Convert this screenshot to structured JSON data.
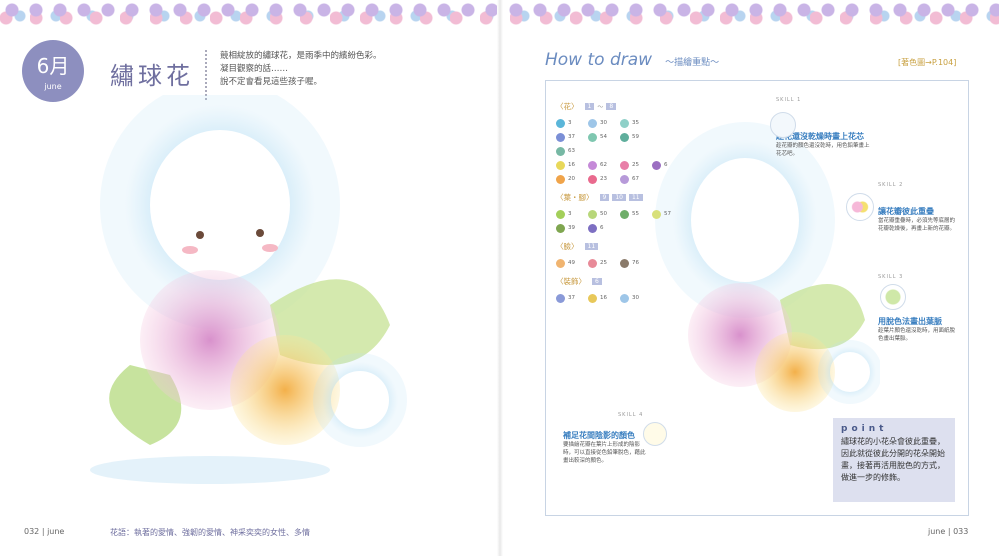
{
  "left_page": {
    "month": "6月",
    "month_en": "june",
    "title": "繡球花",
    "intro": [
      "競相綻放的繡球花，是雨季中的繽紛色彩。",
      "凝目觀察的話……",
      "說不定會看見這些孩子喔。"
    ],
    "page_number": "032",
    "running_head": "june",
    "flower_language": "花語：執著的愛情、強韌的愛情、神采奕奕的女性、多情"
  },
  "right_page": {
    "heading": "How to draw",
    "subheading": "～描繪重點～",
    "reference": "[著色圖→P.104]",
    "palette": [
      {
        "label": "〈花〉",
        "badges": [
          "1",
          "～",
          "8"
        ],
        "rows": [
          [
            {
              "no": "3",
              "color": "#5bb6d9"
            },
            {
              "no": "30",
              "color": "#9ec6e8"
            },
            {
              "no": "35",
              "color": "#8fd0c8"
            }
          ],
          [
            {
              "no": "37",
              "color": "#7b8fd6"
            },
            {
              "no": "54",
              "color": "#7fc7b0"
            },
            {
              "no": "59",
              "color": "#5fae9c"
            }
          ],
          [
            {
              "no": "63",
              "color": "#77b8a4"
            }
          ],
          [
            {
              "no": "16",
              "color": "#e8d85a"
            },
            {
              "no": "62",
              "color": "#c58ad8"
            },
            {
              "no": "25",
              "color": "#e87fa8"
            },
            {
              "no": "6",
              "color": "#9c6fc2"
            }
          ],
          [
            {
              "no": "20",
              "color": "#f0a44a"
            },
            {
              "no": "23",
              "color": "#e96a8e"
            },
            {
              "no": "67",
              "color": "#b79ad9"
            }
          ]
        ]
      },
      {
        "label": "〈葉・腳〉",
        "badges": [
          "9",
          "10",
          "11"
        ],
        "rows": [
          [
            {
              "no": "3",
              "color": "#a3cf5a"
            },
            {
              "no": "50",
              "color": "#b8d77a"
            },
            {
              "no": "55",
              "color": "#6fae6a"
            },
            {
              "no": "57",
              "color": "#d8e07a"
            }
          ],
          [
            {
              "no": "39",
              "color": "#7fa650"
            },
            {
              "no": "6",
              "color": "#7d6fc2"
            }
          ]
        ]
      },
      {
        "label": "〈臉〉",
        "badges": [
          "11"
        ],
        "rows": [
          [
            {
              "no": "49",
              "color": "#f0b470"
            },
            {
              "no": "25",
              "color": "#e88a98"
            },
            {
              "no": "76",
              "color": "#8a7a6a"
            }
          ]
        ]
      },
      {
        "label": "〈裝飾〉",
        "badges": [
          "6"
        ],
        "rows": [
          [
            {
              "no": "37",
              "color": "#8a9ad8"
            },
            {
              "no": "16",
              "color": "#e8c85a"
            },
            {
              "no": "30",
              "color": "#9ec6e8"
            }
          ]
        ]
      }
    ],
    "skills": [
      {
        "tag": "SKILL 1",
        "title": "趁花還沒乾燥時畫上花芯",
        "text": "趁花瓣的顏色還沒乾時，用色鉛筆畫上花芯吧。"
      },
      {
        "tag": "SKILL 2",
        "title": "讓花瓣彼此重疊",
        "text": "當花瓣重疊時，必須先等底層的花瓣乾燥後，再畫上新的花瓣。"
      },
      {
        "tag": "SKILL 3",
        "title": "用脫色法畫出葉脈",
        "text": "趁葉片顏色還沒乾時，用面紙脫色畫出葉脈。"
      },
      {
        "tag": "SKILL 4",
        "title": "補足花間陰影的顏色",
        "text": "要描繪花瓣在葉片上形成的陰影時，可以直接從色鉛筆脫色，藉此畫出較深的顏色。"
      }
    ],
    "point": {
      "label": "point",
      "text": "繡球花的小花朵會彼此重疊，因此就從彼此分開的花朵開始畫，接著再活用脫色的方式，做進一步的修飾。"
    },
    "page_number": "033",
    "running_head": "june"
  }
}
